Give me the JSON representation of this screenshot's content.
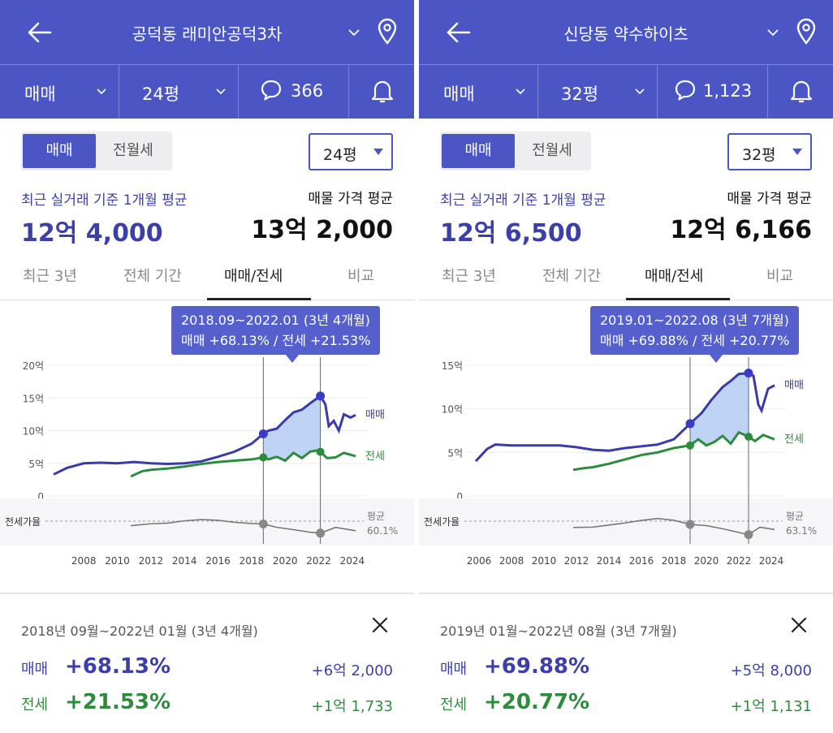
{
  "panels": [
    {
      "title": "공덕동 래미안공덕3차",
      "trade_type": "매매",
      "size": "24평",
      "comments": "366",
      "toggle": [
        "매매",
        "전월세"
      ],
      "size_select": "24평",
      "recent_label": "최근 실거래 기준 1개월 평균",
      "recent_price": "12억 4,000",
      "listing_label": "매물 가격 평균",
      "listing_price": "13억 2,000",
      "tabs": [
        "최근 3년",
        "전체 기간",
        "매매/전세",
        "비교"
      ],
      "active_tab": 2,
      "tooltip": {
        "line1": "2018.09~2022.01 (3년 4개월)",
        "line2": "매매 +68.13%  /  전세 +21.53%"
      },
      "chart_data": {
        "type": "line",
        "x_ticks": [
          "2008",
          "2010",
          "2012",
          "2014",
          "2016",
          "2018",
          "2020",
          "2022",
          "2024"
        ],
        "y_ticks": [
          "20억",
          "15억",
          "10억",
          "5억",
          "0"
        ],
        "ylim": [
          0,
          20
        ],
        "unit": "억",
        "ratio_label": "전세가율",
        "avg_label": "평균",
        "avg_ratio": "60.1%",
        "series": [
          {
            "name": "매매",
            "color": "#3a3aa8",
            "x": [
              2006.2,
              2007,
              2008,
              2009,
              2010,
              2011,
              2012,
              2013,
              2014,
              2015,
              2016,
              2017,
              2017.5,
              2018,
              2018.7,
              2019,
              2019.5,
              2020,
              2020.5,
              2021,
              2021.5,
              2022.1,
              2022.4,
              2022.6,
              2022.9,
              2023.2,
              2023.5,
              2023.9,
              2024.2
            ],
            "values": [
              3.3,
              4.3,
              5.0,
              5.1,
              5.0,
              5.2,
              5.0,
              4.9,
              5.0,
              5.3,
              6.0,
              6.8,
              7.4,
              8.0,
              9.5,
              10.0,
              10.3,
              11.6,
              12.8,
              13.2,
              14.2,
              15.3,
              14.0,
              10.7,
              11.5,
              10.0,
              12.5,
              12.0,
              12.4
            ]
          },
          {
            "name": "전세",
            "color": "#2e8b3e",
            "x": [
              2010.8,
              2011.5,
              2012,
              2013,
              2014,
              2015,
              2016,
              2017,
              2018,
              2018.7,
              2019,
              2019.5,
              2020,
              2020.5,
              2021,
              2021.5,
              2022,
              2022.5,
              2023,
              2023.5,
              2024.2
            ],
            "values": [
              3.0,
              3.8,
              4.0,
              4.2,
              4.5,
              4.9,
              5.2,
              5.4,
              5.6,
              5.9,
              5.6,
              6.0,
              5.4,
              6.6,
              5.8,
              6.8,
              7.0,
              5.8,
              5.9,
              6.6,
              6.1
            ]
          },
          {
            "name": "전세가율",
            "color": "#777777",
            "x": [
              2010.8,
              2012,
              2013,
              2014,
              2015,
              2016,
              2017,
              2018,
              2018.7,
              2019.5,
              2020.5,
              2021.5,
              2022.1,
              2023,
              2024.2
            ],
            "values": [
              60.4,
              62.5,
              63.2,
              65.8,
              67.2,
              66.4,
              64.1,
              62.8,
              62.3,
              58.5,
              55.9,
              53.0,
              52.0,
              58.4,
              54.7
            ]
          }
        ],
        "markers": [
          {
            "x": 2018.7
          },
          {
            "x": 2022.1
          }
        ]
      },
      "summary": {
        "range": "2018년 09월~2022년 01월 (3년 4개월)",
        "sale_label": "매매",
        "sale_pct": "+68.13%",
        "sale_amt": "+6억 2,000",
        "jeonse_label": "전세",
        "jeonse_pct": "+21.53%",
        "jeonse_amt": "+1억 1,733"
      }
    },
    {
      "title": "신당동 약수하이츠",
      "trade_type": "매매",
      "size": "32평",
      "comments": "1,123",
      "toggle": [
        "매매",
        "전월세"
      ],
      "size_select": "32평",
      "recent_label": "최근 실거래 기준 1개월 평균",
      "recent_price": "12억 6,500",
      "listing_label": "매물 가격 평균",
      "listing_price": "12억 6,166",
      "tabs": [
        "최근 3년",
        "전체 기간",
        "매매/전세",
        "비교"
      ],
      "active_tab": 2,
      "tooltip": {
        "line1": "2019.01~2022.08 (3년 7개월)",
        "line2": "매매 +69.88%  /  전세 +20.77%"
      },
      "chart_data": {
        "type": "line",
        "x_ticks": [
          "2006",
          "2008",
          "2010",
          "2012",
          "2014",
          "2016",
          "2018",
          "2020",
          "2022",
          "2024"
        ],
        "y_ticks": [
          "15억",
          "10억",
          "5억",
          "0"
        ],
        "ylim": [
          0,
          15
        ],
        "unit": "억",
        "ratio_label": "전세가율",
        "avg_label": "평균",
        "avg_ratio": "63.1%",
        "series": [
          {
            "name": "매매",
            "color": "#3a3aa8",
            "x": [
              2005.8,
              2006.5,
              2007,
              2008,
              2009,
              2010,
              2011,
              2012,
              2013,
              2014,
              2015,
              2016,
              2017,
              2018,
              2019,
              2019.7,
              2020.3,
              2021,
              2021.5,
              2022,
              2022.6,
              2022.9,
              2023.2,
              2023.4,
              2023.8,
              2024.2
            ],
            "values": [
              4.0,
              5.4,
              5.9,
              5.8,
              5.8,
              5.8,
              5.8,
              5.6,
              5.3,
              5.2,
              5.5,
              5.7,
              5.9,
              6.5,
              8.3,
              9.5,
              11.0,
              12.5,
              13.2,
              14.0,
              14.1,
              13.8,
              10.5,
              9.8,
              12.3,
              12.7
            ]
          },
          {
            "name": "전세",
            "color": "#2e8b3e",
            "x": [
              2011.8,
              2012.5,
              2013,
              2014,
              2015,
              2016,
              2017,
              2018,
              2019,
              2019.5,
              2020,
              2020.5,
              2021,
              2021.5,
              2022,
              2022.6,
              2023,
              2023.5,
              2024.2
            ],
            "values": [
              3.0,
              3.2,
              3.3,
              3.7,
              4.2,
              4.7,
              5.0,
              5.5,
              5.8,
              6.5,
              5.8,
              6.2,
              6.9,
              6.0,
              7.3,
              6.8,
              6.3,
              7.0,
              6.5
            ]
          },
          {
            "name": "전세가율",
            "color": "#777777",
            "x": [
              2011.8,
              2013,
              2014,
              2015,
              2016,
              2017,
              2018,
              2019,
              2020,
              2021,
              2022.6,
              2023.3,
              2024.2
            ],
            "values": [
              61.2,
              61.7,
              64.4,
              67.1,
              70.5,
              72.8,
              70.6,
              65.2,
              63.7,
              59.6,
              52.0,
              61.6,
              58.6
            ]
          }
        ],
        "markers": [
          {
            "x": 2019.0
          },
          {
            "x": 2022.6
          }
        ]
      },
      "summary": {
        "range": "2019년 01월~2022년 08월 (3년 7개월)",
        "sale_label": "매매",
        "sale_pct": "+69.88%",
        "sale_amt": "+5억 8,000",
        "jeonse_label": "전세",
        "jeonse_pct": "+20.77%",
        "jeonse_amt": "+1억 1,131"
      }
    }
  ]
}
